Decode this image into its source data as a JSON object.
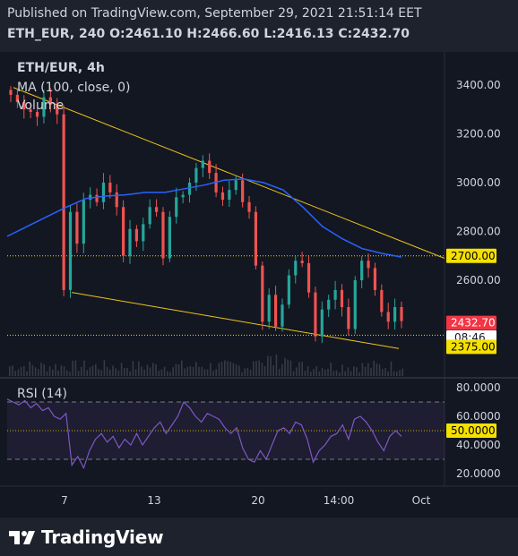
{
  "header": {
    "published": "Published on TradingView.com, September 29, 2021 21:51:14 EET",
    "symbol_interval": "ETH_EUR, 240",
    "o_label": "O:",
    "o_value": "2461.10",
    "h_label": "H:",
    "h_value": "2466.60",
    "l_label": "L:",
    "l_value": "2416.13",
    "c_label": "C:",
    "c_value": "2432.70"
  },
  "legend": {
    "title": "ETH/EUR, 4h",
    "ma": "MA (100, close, 0)",
    "volume": "Volume",
    "rsi": "RSI (14)"
  },
  "footer": {
    "brand": "TradingView"
  },
  "colors": {
    "background": "#131722",
    "up": "#26a69a",
    "down": "#ef5350",
    "ma": "#2962ff",
    "trendline": "#f0c419",
    "rsi": "#7e57c2",
    "badge_yellow": "#f5e000",
    "badge_red": "#f23645"
  },
  "chart_data": [
    {
      "type": "candlestick",
      "title": "ETH/EUR, 4h",
      "ylim": [
        2300,
        3500
      ],
      "y_ticks": [
        "3400.00",
        "3200.00",
        "3000.00",
        "2800.00",
        "2600.00"
      ],
      "x_ticks": [
        "7",
        "13",
        "20",
        "14:00",
        "Oct"
      ],
      "candles_approx_close": [
        3360,
        3330,
        3300,
        3290,
        3270,
        3350,
        3320,
        3280,
        2560,
        2880,
        2750,
        2930,
        2950,
        2920,
        3000,
        2960,
        2900,
        2700,
        2810,
        2760,
        2830,
        2900,
        2880,
        2690,
        2860,
        2940,
        2950,
        3000,
        3060,
        3090,
        3040,
        2960,
        2930,
        2970,
        3010,
        2920,
        2880,
        2660,
        2430,
        2540,
        2410,
        2500,
        2620,
        2680,
        2670,
        2550,
        2370,
        2480,
        2520,
        2560,
        2490,
        2400,
        2600,
        2680,
        2650,
        2560,
        2470,
        2430,
        2490,
        2432.7
      ],
      "ma_100": [
        2780,
        2820,
        2860,
        2900,
        2935,
        2945,
        2950,
        2960,
        2960,
        2975,
        2990,
        3010,
        3015,
        3000,
        2970,
        2900,
        2820,
        2770,
        2730,
        2710,
        2695
      ],
      "horizontal_levels": [
        {
          "label": "2700.00",
          "value": 2700
        },
        {
          "label": "2375.00",
          "value": 2375
        }
      ],
      "last_price": {
        "label": "2432.70",
        "countdown": "08:46"
      },
      "trendlines": [
        {
          "from": [
            0,
            3390
          ],
          "to": [
            1,
            2690
          ]
        },
        {
          "from": [
            0.15,
            2550
          ],
          "to": [
            0.93,
            2320
          ]
        }
      ]
    },
    {
      "type": "line",
      "title": "RSI (14)",
      "ylim": [
        15,
        85
      ],
      "y_ticks": [
        "80.0000",
        "60.0000",
        "40.0000",
        "20.0000"
      ],
      "bands": [
        70,
        30
      ],
      "current": "50.0000",
      "values": [
        72,
        70,
        68,
        71,
        66,
        69,
        64,
        66,
        60,
        58,
        62,
        26,
        32,
        24,
        36,
        44,
        48,
        42,
        46,
        38,
        44,
        40,
        48,
        40,
        46,
        52,
        56,
        48,
        54,
        60,
        70,
        66,
        60,
        56,
        62,
        60,
        58,
        52,
        48,
        52,
        38,
        30,
        28,
        36,
        30,
        40,
        50,
        52,
        48,
        56,
        54,
        44,
        28,
        36,
        40,
        46,
        48,
        54,
        44,
        58,
        60,
        56,
        50,
        42,
        36,
        46,
        50,
        46
      ]
    }
  ]
}
